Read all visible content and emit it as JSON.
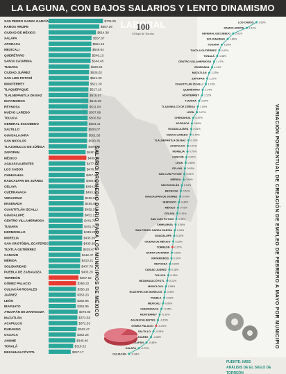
{
  "title": "LA LAGUNA, CON BAJOS SALARIOS Y LENTO DINAMISMO LABORAL",
  "logo": {
    "number": "100",
    "subtitle": "El Siglo de Torreón"
  },
  "left_axis_title": "SALARIO PROMEDIO DIARIO PARA LOS MUNICIPIOS DE MÉXICO",
  "right_axis_title": "VARIACIÓN PORCENTUAL DE CREACIÓN DE EMPLEO DE FEBRERO A MAYO POR MUNICIPIO",
  "footer": {
    "source": "FUENTE: IMSS",
    "analysis": "ANÁLISIS DE EL SIGLO DE TORREÓN"
  },
  "colors": {
    "bar": "#2aa79b",
    "highlight": "#e73b32",
    "line": "#2aa79b",
    "title_bg": "#2f2e2c"
  },
  "chart_data": [
    {
      "type": "bar",
      "orientation": "horizontal",
      "categories": [
        "SAN PEDRO GARZA GARCÍA",
        "RAMOS ARIZPE",
        "CIUDAD DE MÉXICO",
        "XALAPA",
        "APODACA",
        "MEXICALI",
        "QUERÉTARO",
        "SANTA CATARINA",
        "TIJUANA",
        "CIUDAD JUÁREZ",
        "SAN LUIS POTOSÍ",
        "MONTERREY",
        "TLAQUEPAQUE",
        "TLALNEPANTLA DE BAZ",
        "MATAMOROS",
        "REYNOSA",
        "NUEVO LAREDO",
        "TOLUCA",
        "GENERAL ESCOBEDO",
        "SALTILLO",
        "GUADALAJARA",
        "SAN NICOLÁS",
        "TLAJOMULCO DE ZÚÑIGA",
        "ZAPOPAN",
        "MÉXICO",
        "AGUASCALIENTES",
        "LOS CABOS",
        "CHIHUAHUA",
        "NAUCALPAN DE JUÁREZ",
        "CELAYA",
        "CUERNAVACA",
        "VERACRUZ",
        "ENSENADA",
        "CUAUTITLÁN IZCALLI",
        "GUADALUPE",
        "CENTRO VILLAHERMOSA",
        "TIJUANA",
        "HERMOSILLO",
        "MORELIA",
        "SAN CRISTÓBAL ECATEPEC",
        "TUXTLA GUTIÉRREZ",
        "CANCÚN",
        "MÉRIDA",
        "SOLIDARIDAD",
        "PUEBLA DE ZARAGOZA",
        "TORREÓN",
        "GÓMEZ PALACIO",
        "CULIACÁN ROSALES",
        "JUÁREZ",
        "LEÓN",
        "IRAPUATO",
        "ATIZAPÁN DE ZARAGOZA",
        "MAZATLÁN",
        "ACAPULCO",
        "DURANGO",
        "OAXACA",
        "AHOME",
        "TONALÁ",
        "NEZAHUALCÓYOTL"
      ],
      "values": [
        705.05,
        657.29,
        614.38,
        557.67,
        554.1,
        549.84,
        546.13,
        544.48,
        529.26,
        525.02,
        521.3,
        521.2,
        517.16,
        515.07,
        515.39,
        511.04,
        507.69,
        506.59,
        503.41,
        500.07,
        501.85,
        500.35,
        497.78,
        480.24,
        489.45,
        477.52,
        476.99,
        467.45,
        466.96,
        464.98,
        463.1,
        455.53,
        455.5,
        452.34,
        451.11,
        441.76,
        441.76,
        439.23,
        435.39,
        435.39,
        429.67,
        412.47,
        410.21,
        407.76,
        405.29,
        387.82,
        356.22,
        356.18,
        353.23,
        352.95,
        352.95,
        376.85,
        372.58,
        372.53,
        363.47,
        352.25,
        345.4,
        318.52,
        287.17
      ],
      "value_labels": [
        "$705.05",
        "$657.29",
        "$614.38",
        "$557.67",
        "$554.10",
        "$549.84",
        "$546.13",
        "$544.48",
        "$529.26",
        "$525.02",
        "$521.30",
        "$521.20",
        "$517.16",
        "$515.07",
        "$515.39",
        "$511.04",
        "$507.69",
        "$506.59",
        "$503.41",
        "$500.07",
        "$501.85",
        "$500.35",
        "$497.78",
        "$480.24",
        "$489.45",
        "$477.52",
        "$476.99",
        "$467.45",
        "$466.96",
        "$464.98",
        "$463.10",
        "$455.53",
        "$455.50",
        "$452.34",
        "$451.11",
        "$441.76",
        "$441.76",
        "$439.23",
        "$435.39",
        "$435.39",
        "$429.67",
        "$412.47",
        "$410.21",
        "$407.76",
        "$405.29",
        "$387.82",
        "$356.22",
        "$356.18",
        "$353.23",
        "$352.95",
        "$352.95",
        "$376.85",
        "$372.58",
        "$372.53",
        "$363.47",
        "$352.25",
        "$345.40",
        "$318.52",
        "$287.17"
      ],
      "highlighted": [
        "MÉXICO",
        "TORREÓN",
        "GÓMEZ PALACIO"
      ],
      "xlim": [
        0,
        720
      ]
    },
    {
      "type": "line",
      "categories": [
        "LOS CABOS",
        "RAMOS ARIZPE",
        "GENERAL ESCOBEDO",
        "SOLIDARIDAD",
        "TIJUANA",
        "TUXTLA GUTIÉRREZ",
        "TONALÁ",
        "CENTRO VILLAHERMOSA",
        "ENSENADA",
        "MAZATLÁN",
        "ZAPOPAN",
        "CUAUTITLÁN IZCALLI",
        "QUERÉTARO",
        "MONTERREY",
        "TIJUANA",
        "TLAJOMULCO DE ZÚÑIGA",
        "LEÓN",
        "CHIHUAHUA",
        "APODACA",
        "GUADALAJARA",
        "NUEVO LAREDO",
        "TLALNEPANTLA DE BAZ",
        "ACAPULCO",
        "MORELIA",
        "CANCÚN",
        "LEÓN",
        "CELAYA",
        "SAN LUIS POTOSÍ",
        "MÉRIDA",
        "SAN NICOLÁS",
        "REYNOSA",
        "NAUCALPAN DE JUÁREZ",
        "IRAPUATO",
        "MÉXICO",
        "CELAYA",
        "SAN LUIS POTOSÍ",
        "CHIHUAHUA",
        "SAN PEDRO GARZA GARCÍA",
        "GUADALUPE",
        "CIUDAD DE MÉXICO",
        "TORREÓN",
        "SANTA CATARINA",
        "MATAMOROS",
        "REYNOSA",
        "CIUDAD JUÁREZ",
        "TOLUCA",
        "NEZAHUALCÓYOTL",
        "MONCLOVA",
        "ECATEPEC DE MORELOS",
        "PUEBLA",
        "MEXICALI",
        "CUERNAVACA",
        "MONTERREY",
        "AGUASCALIENTES",
        "GÓMEZ PALACIO",
        "SALTILLO",
        "CLUDAD JUÁREZ",
        "ATIZAPÁN",
        "XALAPA",
        "CULIACÁN"
      ],
      "values": [
        2.69,
        2.41,
        2.02,
        1.86,
        1.69,
        1.62,
        1.56,
        1.47,
        1.41,
        1.33,
        1.27,
        1.23,
        1.14,
        1.12,
        1.04,
        1.0,
        0.97,
        0.87,
        0.83,
        0.81,
        0.79,
        0.73,
        0.71,
        0.7,
        0.67,
        0.65,
        0.63,
        0.61,
        0.59,
        0.54,
        0.51,
        0.49,
        0.46,
        0.43,
        0.41,
        0.38,
        0.36,
        0.34,
        0.32,
        0.29,
        0.27,
        0.25,
        0.24,
        0.2,
        0.18,
        0.15,
        0.12,
        0.08,
        0.05,
        0.03,
        0.0,
        -0.05,
        -0.1,
        -0.15,
        -0.2,
        -0.28,
        -0.35,
        -0.48,
        -0.7,
        -0.98
      ],
      "value_labels": [
        "2.69%",
        "2.41%",
        "2.02%",
        "1.86%",
        "1.69%",
        "1.62%",
        "1.56%",
        "1.47%",
        "1.41%",
        "1.33%",
        "1.27%",
        "1.23%",
        "1.14%",
        "1.12%",
        "1.04%",
        "1.00%",
        "0.97%",
        "0.87%",
        "0.83%",
        "0.81%",
        "0.79%",
        "0.73%",
        "0.71%",
        "0.70%",
        "0.67%",
        "0.65%",
        "0.63%",
        "0.61%",
        "0.59%",
        "0.54%",
        "0.51%",
        "0.49%",
        "0.46%",
        "0.43%",
        "0.41%",
        "0.38%",
        "0.36%",
        "0.34%",
        "0.32%",
        "0.29%",
        "0.27%",
        "0.25%",
        "0.24%",
        "0.20%",
        "0.18%",
        "0.15%",
        "0.12%",
        "0.08%",
        "0.05%",
        "0.03%",
        "0.00%",
        "-0.05%",
        "-0.10%",
        "-0.15%",
        "-0.20%",
        "-0.28%",
        "-0.35%",
        "-0.48%",
        "-0.70%",
        "-0.98%"
      ],
      "highlighted": [
        "TORREÓN",
        "GÓMEZ PALACIO"
      ],
      "xlim": [
        -1.1,
        2.8
      ]
    }
  ]
}
